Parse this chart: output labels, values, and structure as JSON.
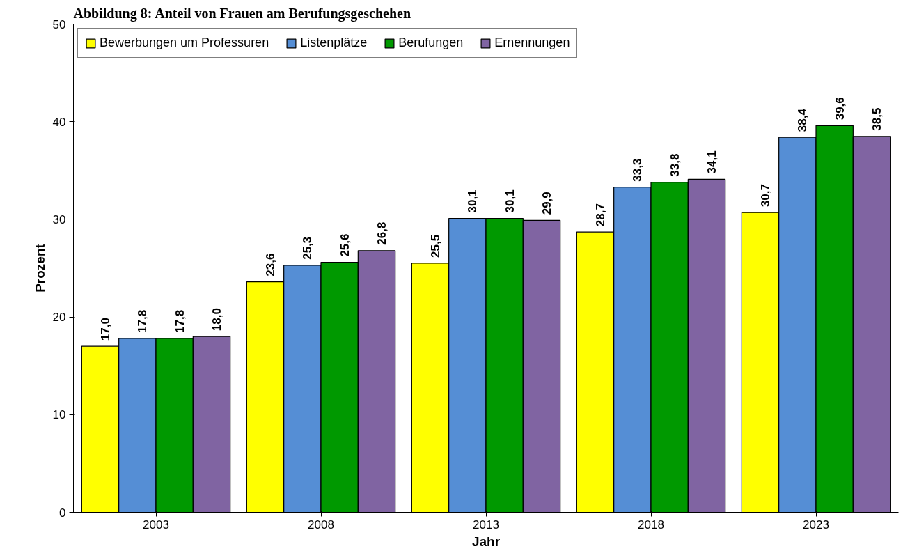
{
  "chart_data": {
    "type": "bar",
    "title": "Abbildung 8: Anteil von Frauen am Berufungsgeschehen",
    "xlabel": "Jahr",
    "ylabel": "Prozent",
    "categories": [
      "2003",
      "2008",
      "2013",
      "2018",
      "2023"
    ],
    "series": [
      {
        "name": "Bewerbungen um Professuren",
        "color": "#ffff00",
        "values": [
          17.0,
          23.6,
          25.5,
          28.7,
          30.7
        ],
        "value_labels": [
          "17,0",
          "23,6",
          "25,5",
          "28,7",
          "30,7"
        ]
      },
      {
        "name": "Listenplätze",
        "color": "#558ed5",
        "values": [
          17.8,
          25.3,
          30.1,
          33.3,
          38.4
        ],
        "value_labels": [
          "17,8",
          "25,3",
          "30,1",
          "33,3",
          "38,4"
        ]
      },
      {
        "name": "Berufungen",
        "color": "#009900",
        "values": [
          17.8,
          25.6,
          30.1,
          33.8,
          39.6
        ],
        "value_labels": [
          "17,8",
          "25,6",
          "30,1",
          "33,8",
          "39,6"
        ]
      },
      {
        "name": "Ernennungen",
        "color": "#8064a2",
        "values": [
          18.0,
          26.8,
          29.9,
          34.1,
          38.5
        ],
        "value_labels": [
          "18,0",
          "26,8",
          "29,9",
          "34,1",
          "38,5"
        ]
      }
    ],
    "ylim": [
      0,
      50
    ],
    "yticks": [
      0,
      10,
      20,
      30,
      40,
      50
    ],
    "grid": false,
    "legend": "top left"
  }
}
